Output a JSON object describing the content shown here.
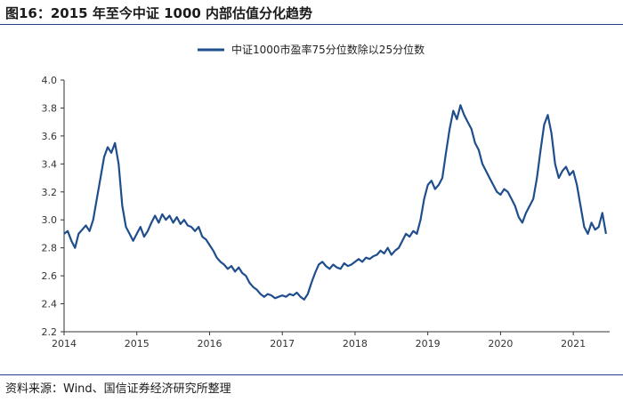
{
  "header": {
    "title": "图16：2015 年至今中证 1000 内部估值分化趋势"
  },
  "footer": {
    "source": "资料来源：Wind、国信证券经济研究所整理"
  },
  "colors": {
    "series": "#1f4e8c",
    "rule": "#1f3d8a"
  },
  "chart_data": {
    "type": "line",
    "title": "",
    "xlabel": "",
    "ylabel": "",
    "xlim": [
      2014,
      2021.5
    ],
    "ylim": [
      2.2,
      4.0
    ],
    "xticks": [
      2014,
      2015,
      2016,
      2017,
      2018,
      2019,
      2020,
      2021
    ],
    "yticks": [
      "2.2",
      "2.4",
      "2.6",
      "2.8",
      "3.0",
      "3.2",
      "3.4",
      "3.6",
      "3.8",
      "4.0"
    ],
    "grid": false,
    "legend_position": "top-center",
    "series": [
      {
        "name": "中证1000市盈率75分位数除以25分位数",
        "points": [
          [
            2014.0,
            2.9
          ],
          [
            2014.05,
            2.92
          ],
          [
            2014.1,
            2.85
          ],
          [
            2014.15,
            2.8
          ],
          [
            2014.2,
            2.9
          ],
          [
            2014.25,
            2.93
          ],
          [
            2014.3,
            2.96
          ],
          [
            2014.35,
            2.92
          ],
          [
            2014.4,
            3.0
          ],
          [
            2014.45,
            3.15
          ],
          [
            2014.5,
            3.3
          ],
          [
            2014.55,
            3.45
          ],
          [
            2014.6,
            3.52
          ],
          [
            2014.65,
            3.48
          ],
          [
            2014.7,
            3.55
          ],
          [
            2014.75,
            3.4
          ],
          [
            2014.8,
            3.1
          ],
          [
            2014.85,
            2.95
          ],
          [
            2014.9,
            2.9
          ],
          [
            2014.95,
            2.85
          ],
          [
            2015.0,
            2.9
          ],
          [
            2015.05,
            2.95
          ],
          [
            2015.1,
            2.88
          ],
          [
            2015.15,
            2.92
          ],
          [
            2015.2,
            2.98
          ],
          [
            2015.25,
            3.03
          ],
          [
            2015.3,
            2.98
          ],
          [
            2015.35,
            3.04
          ],
          [
            2015.4,
            3.0
          ],
          [
            2015.45,
            3.03
          ],
          [
            2015.5,
            2.98
          ],
          [
            2015.55,
            3.02
          ],
          [
            2015.6,
            2.97
          ],
          [
            2015.65,
            3.0
          ],
          [
            2015.7,
            2.96
          ],
          [
            2015.75,
            2.95
          ],
          [
            2015.8,
            2.92
          ],
          [
            2015.85,
            2.95
          ],
          [
            2015.9,
            2.88
          ],
          [
            2015.95,
            2.86
          ],
          [
            2016.0,
            2.82
          ],
          [
            2016.05,
            2.78
          ],
          [
            2016.1,
            2.73
          ],
          [
            2016.15,
            2.7
          ],
          [
            2016.2,
            2.68
          ],
          [
            2016.25,
            2.65
          ],
          [
            2016.3,
            2.67
          ],
          [
            2016.35,
            2.63
          ],
          [
            2016.4,
            2.66
          ],
          [
            2016.45,
            2.62
          ],
          [
            2016.5,
            2.6
          ],
          [
            2016.55,
            2.55
          ],
          [
            2016.6,
            2.52
          ],
          [
            2016.65,
            2.5
          ],
          [
            2016.7,
            2.47
          ],
          [
            2016.75,
            2.45
          ],
          [
            2016.8,
            2.47
          ],
          [
            2016.85,
            2.46
          ],
          [
            2016.9,
            2.44
          ],
          [
            2016.95,
            2.45
          ],
          [
            2017.0,
            2.46
          ],
          [
            2017.05,
            2.45
          ],
          [
            2017.1,
            2.47
          ],
          [
            2017.15,
            2.46
          ],
          [
            2017.2,
            2.48
          ],
          [
            2017.25,
            2.45
          ],
          [
            2017.3,
            2.43
          ],
          [
            2017.35,
            2.47
          ],
          [
            2017.4,
            2.55
          ],
          [
            2017.45,
            2.62
          ],
          [
            2017.5,
            2.68
          ],
          [
            2017.55,
            2.7
          ],
          [
            2017.6,
            2.67
          ],
          [
            2017.65,
            2.65
          ],
          [
            2017.7,
            2.68
          ],
          [
            2017.75,
            2.66
          ],
          [
            2017.8,
            2.65
          ],
          [
            2017.85,
            2.69
          ],
          [
            2017.9,
            2.67
          ],
          [
            2017.95,
            2.68
          ],
          [
            2018.0,
            2.7
          ],
          [
            2018.05,
            2.72
          ],
          [
            2018.1,
            2.7
          ],
          [
            2018.15,
            2.73
          ],
          [
            2018.2,
            2.72
          ],
          [
            2018.25,
            2.74
          ],
          [
            2018.3,
            2.75
          ],
          [
            2018.35,
            2.78
          ],
          [
            2018.4,
            2.76
          ],
          [
            2018.45,
            2.8
          ],
          [
            2018.5,
            2.75
          ],
          [
            2018.55,
            2.78
          ],
          [
            2018.6,
            2.8
          ],
          [
            2018.65,
            2.85
          ],
          [
            2018.7,
            2.9
          ],
          [
            2018.75,
            2.88
          ],
          [
            2018.8,
            2.92
          ],
          [
            2018.85,
            2.9
          ],
          [
            2018.9,
            3.0
          ],
          [
            2018.95,
            3.15
          ],
          [
            2019.0,
            3.25
          ],
          [
            2019.05,
            3.28
          ],
          [
            2019.1,
            3.22
          ],
          [
            2019.15,
            3.25
          ],
          [
            2019.2,
            3.3
          ],
          [
            2019.25,
            3.48
          ],
          [
            2019.3,
            3.65
          ],
          [
            2019.35,
            3.78
          ],
          [
            2019.4,
            3.72
          ],
          [
            2019.45,
            3.82
          ],
          [
            2019.5,
            3.75
          ],
          [
            2019.55,
            3.7
          ],
          [
            2019.6,
            3.65
          ],
          [
            2019.65,
            3.55
          ],
          [
            2019.7,
            3.5
          ],
          [
            2019.75,
            3.4
          ],
          [
            2019.8,
            3.35
          ],
          [
            2019.85,
            3.3
          ],
          [
            2019.9,
            3.25
          ],
          [
            2019.95,
            3.2
          ],
          [
            2020.0,
            3.18
          ],
          [
            2020.05,
            3.22
          ],
          [
            2020.1,
            3.2
          ],
          [
            2020.15,
            3.15
          ],
          [
            2020.2,
            3.1
          ],
          [
            2020.25,
            3.02
          ],
          [
            2020.3,
            2.98
          ],
          [
            2020.35,
            3.05
          ],
          [
            2020.4,
            3.1
          ],
          [
            2020.45,
            3.15
          ],
          [
            2020.5,
            3.3
          ],
          [
            2020.55,
            3.5
          ],
          [
            2020.6,
            3.68
          ],
          [
            2020.65,
            3.75
          ],
          [
            2020.7,
            3.62
          ],
          [
            2020.75,
            3.4
          ],
          [
            2020.8,
            3.3
          ],
          [
            2020.85,
            3.35
          ],
          [
            2020.9,
            3.38
          ],
          [
            2020.95,
            3.32
          ],
          [
            2021.0,
            3.35
          ],
          [
            2021.05,
            3.25
          ],
          [
            2021.1,
            3.1
          ],
          [
            2021.15,
            2.95
          ],
          [
            2021.2,
            2.9
          ],
          [
            2021.25,
            2.98
          ],
          [
            2021.3,
            2.93
          ],
          [
            2021.35,
            2.95
          ],
          [
            2021.4,
            3.05
          ],
          [
            2021.45,
            2.9
          ]
        ]
      }
    ]
  }
}
